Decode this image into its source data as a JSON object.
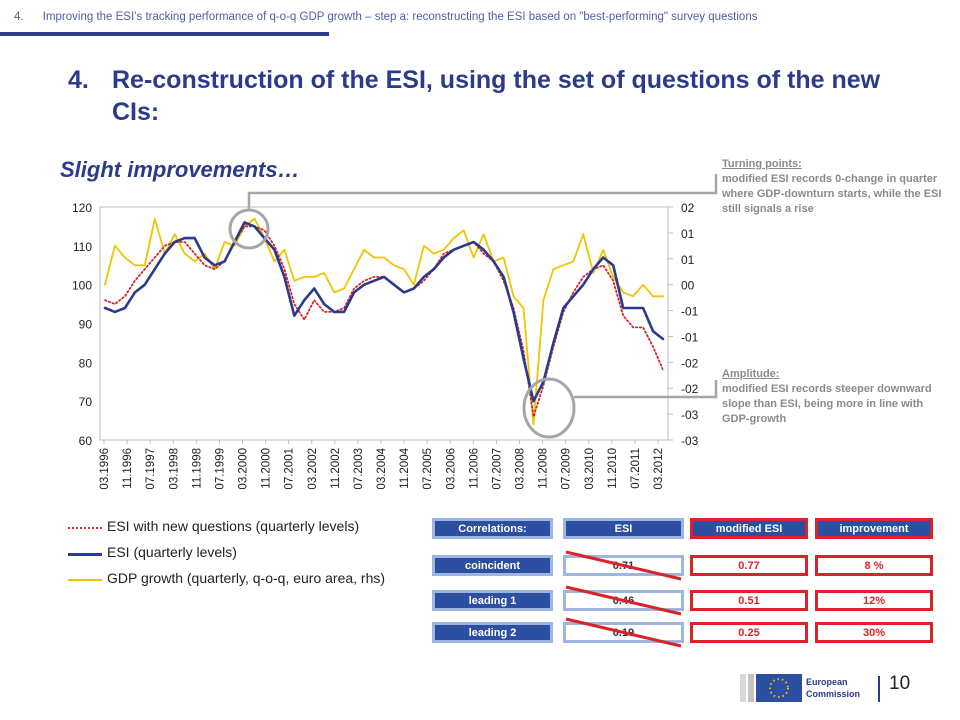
{
  "header": {
    "breadcrumb": "4.      Improving the ESI’s tracking performance of q-o-q GDP growth – step a: reconstructing the ESI based on \"best-performing\" survey questions"
  },
  "title": {
    "number": "4.",
    "text": "Re-construction of the ESI, using the set of questions of the new CIs:"
  },
  "subtitle": "Slight improvements…",
  "notes": {
    "turning_head": "Turning points:",
    "turning_body": "modified ESI records 0-change in quarter where GDP-downturn starts, while the ESI still signals a rise",
    "amplitude_head": "Amplitude:",
    "amplitude_body": "modified ESI records steeper downward slope than ESI, being more in line with GDP-growth"
  },
  "colors": {
    "title_blue": "#2a3a8c",
    "esi_line": "#2a3a8c",
    "modified_line": "#d9232a",
    "gdp_line": "#f2c300",
    "box_blue": "#2d4fa1",
    "box_red_border": "#d9232a",
    "circle": "#a6a6a6"
  },
  "chart_data": {
    "type": "line",
    "x_tick_labels": [
      "03.1996",
      "11.1996",
      "07.1997",
      "03.1998",
      "11.1998",
      "07.1999",
      "03.2000",
      "11.2000",
      "07.2001",
      "03.2002",
      "11.2002",
      "07.2003",
      "03.2004",
      "11.2004",
      "07.2005",
      "03.2006",
      "11.2006",
      "07.2007",
      "03.2008",
      "11.2008",
      "07.2009",
      "03.2010",
      "11.2010",
      "07.2011",
      "03.2012"
    ],
    "y_left": {
      "ticks": [
        "120",
        "110",
        "100",
        "90",
        "80",
        "70",
        "60"
      ],
      "ylim": [
        60,
        120
      ]
    },
    "y_right": {
      "ticks": [
        "02",
        "01",
        "01",
        "00",
        "-01",
        "-01",
        "-02",
        "-02",
        "-03",
        "-03"
      ]
    },
    "x_start": "1996-Q1",
    "x_end": "2013-Q1",
    "series": [
      {
        "name": "ESI with new questions (quarterly levels)",
        "axis": "left",
        "style": "dotted",
        "color": "#d9232a",
        "values": [
          96,
          95,
          97,
          101,
          104,
          107,
          110,
          111,
          111,
          108,
          105,
          104,
          106,
          111,
          115,
          115,
          114,
          110,
          104,
          95,
          91,
          96,
          93,
          93,
          94,
          99,
          101,
          102,
          102,
          100,
          98,
          99,
          101,
          104,
          108,
          109,
          110,
          111,
          108,
          106,
          101,
          94,
          83,
          66,
          74,
          84,
          93,
          98,
          102,
          104,
          105,
          101,
          92,
          89,
          89,
          84,
          78
        ]
      },
      {
        "name": "ESI (quarterly levels)",
        "axis": "left",
        "style": "solid",
        "color": "#2a3a8c",
        "values": [
          94,
          93,
          94,
          98,
          100,
          104,
          108,
          111,
          112,
          112,
          107,
          105,
          106,
          111,
          116,
          115,
          112,
          109,
          102,
          92,
          96,
          99,
          95,
          93,
          93,
          98,
          100,
          101,
          102,
          100,
          98,
          99,
          102,
          104,
          107,
          109,
          110,
          111,
          109,
          106,
          102,
          93,
          81,
          70,
          75,
          85,
          94,
          97,
          100,
          104,
          107,
          105,
          94,
          94,
          94,
          88,
          86
        ]
      },
      {
        "name": "GDP growth (quarterly, q-o-q, euro area, rhs)",
        "axis": "right",
        "style": "solid",
        "color": "#f2c300",
        "values": [
          100,
          110,
          107,
          105,
          105,
          117,
          108,
          113,
          108,
          106,
          108,
          104,
          111,
          110,
          115,
          117,
          112,
          106,
          109,
          101,
          102,
          102,
          103,
          98,
          99,
          104,
          109,
          107,
          107,
          105,
          104,
          100,
          110,
          108,
          109,
          112,
          114,
          107,
          113,
          106,
          107,
          97,
          94,
          64,
          96,
          104,
          105,
          106,
          113,
          103,
          109,
          102,
          98,
          97,
          100,
          97,
          97
        ]
      }
    ],
    "legend": [
      "ESI with new questions (quarterly levels)",
      "ESI (quarterly levels)",
      "GDP growth (quarterly, q-o-q, euro area, rhs)"
    ],
    "legend_position": "bottom-left"
  },
  "correlations": {
    "headers": [
      "Correlations:",
      "ESI",
      "modified ESI",
      "improvement"
    ],
    "rows": [
      {
        "label": "coincident",
        "esi": "0.71",
        "modified": "0.77",
        "improvement": "8 %"
      },
      {
        "label": "leading 1",
        "esi": "0.46",
        "modified": "0.51",
        "improvement": "12%"
      },
      {
        "label": "leading 2",
        "esi": "0.19",
        "modified": "0.25",
        "improvement": "30%"
      }
    ]
  },
  "footer": {
    "logo_text_1": "European",
    "logo_text_2": "Commission",
    "page_number": "10"
  }
}
